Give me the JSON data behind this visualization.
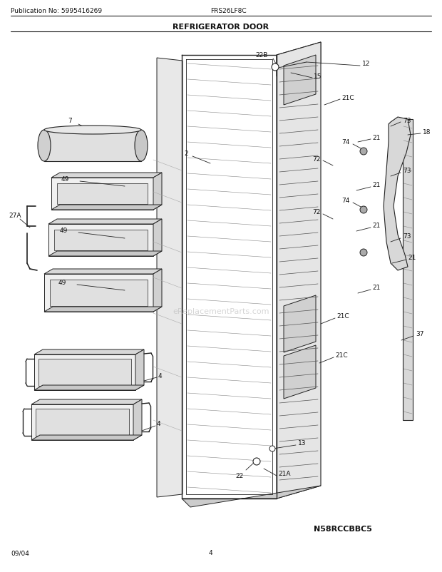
{
  "title": "REFRIGERATOR DOOR",
  "pub_no": "Publication No: 5995416269",
  "model": "FRS26LF8C",
  "diagram_id": "N58RCCBBC5",
  "date": "09/04",
  "page": "4",
  "bg_color": "#ffffff",
  "line_color": "#222222",
  "label_color": "#111111"
}
